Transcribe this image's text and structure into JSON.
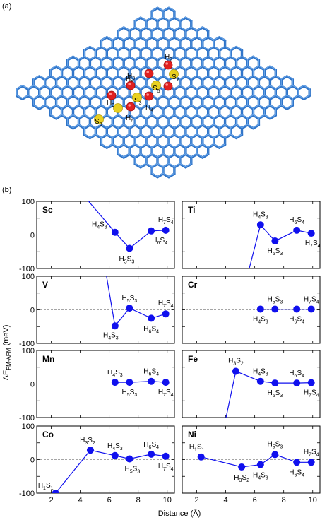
{
  "panel_a": {
    "label": "(a)",
    "atom_labels": [
      {
        "text": "H",
        "sub": "7"
      },
      {
        "text": "S",
        "sub": "7"
      },
      {
        "text": "H",
        "sub": "5"
      },
      {
        "text": "S",
        "sub": "5"
      },
      {
        "text": "H",
        "sub": "0"
      },
      {
        "text": "S",
        "sub": "3"
      },
      {
        "text": "H",
        "sub": "4"
      },
      {
        "text": "S",
        "sub": "0"
      },
      {
        "text": "H",
        "sub": "3"
      },
      {
        "text": "H",
        "sub": "6"
      }
    ]
  },
  "panel_b": {
    "label": "(b)",
    "xlabel": "Distance (Å)",
    "ylabel_main": "ΔE",
    "ylabel_sub": "FM-AFM",
    "ylabel_unit": " (meV)",
    "colors": {
      "series": "#1010ee",
      "zero_line": "#888888",
      "frame": "#000000"
    }
  },
  "chart_data": {
    "type": "line",
    "xlabel": "Distance (Å)",
    "ylabel": "ΔE FM-AFM (meV)",
    "xlim": [
      1,
      10.5
    ],
    "ylim": [
      -100,
      100
    ],
    "xticks": [
      2,
      4,
      6,
      8,
      10
    ],
    "yticks": [
      -100,
      0,
      100
    ],
    "panels": [
      {
        "name": "Sc",
        "points": [
          {
            "x": 6.4,
            "y": 8,
            "lbl": "H4S3"
          },
          {
            "x": 7.4,
            "y": -40,
            "lbl": "H5S3"
          },
          {
            "x": 8.9,
            "y": 12,
            "lbl": "H6S4"
          },
          {
            "x": 9.9,
            "y": 14,
            "lbl": "H7S4"
          }
        ],
        "offscale": {
          "x": 4.5,
          "y": 100
        },
        "labels": [
          {
            "p": 0,
            "t": [
              "H",
              "4",
              "S",
              "3"
            ],
            "dx": -22,
            "dy": -8
          },
          {
            "p": 1,
            "t": [
              "H",
              "5",
              "S",
              "3"
            ],
            "dx": -4,
            "dy": 18
          },
          {
            "p": 2,
            "t": [
              "H",
              "6",
              "S",
              "4"
            ],
            "dx": 12,
            "dy": 16
          },
          {
            "p": 3,
            "t": [
              "H",
              "7",
              "S",
              "4"
            ],
            "dx": 0,
            "dy": -12
          }
        ]
      },
      {
        "name": "Ti",
        "points": [
          {
            "x": 6.4,
            "y": 30,
            "lbl": "H4S3"
          },
          {
            "x": 7.4,
            "y": -18,
            "lbl": "H5S3"
          },
          {
            "x": 8.9,
            "y": 14,
            "lbl": "H6S4"
          },
          {
            "x": 9.9,
            "y": 5,
            "lbl": "H7S4"
          }
        ],
        "offscale": {
          "x": 5.6,
          "y": -100
        },
        "labels": [
          {
            "p": 0,
            "t": [
              "H",
              "4",
              "S",
              "3"
            ],
            "dx": 0,
            "dy": -12
          },
          {
            "p": 1,
            "t": [
              "H",
              "5",
              "S",
              "3"
            ],
            "dx": 0,
            "dy": 17
          },
          {
            "p": 2,
            "t": [
              "H",
              "6",
              "S",
              "4"
            ],
            "dx": 0,
            "dy": -12
          },
          {
            "p": 3,
            "t": [
              "H",
              "7",
              "S",
              "4"
            ],
            "dx": 2,
            "dy": 17
          }
        ]
      },
      {
        "name": "V",
        "points": [
          {
            "x": 6.4,
            "y": -48,
            "lbl": "H4S3"
          },
          {
            "x": 7.4,
            "y": 5,
            "lbl": "H5S3"
          },
          {
            "x": 8.9,
            "y": -25,
            "lbl": "H6S4"
          },
          {
            "x": 9.9,
            "y": -12,
            "lbl": "H7S4"
          }
        ],
        "offscale": {
          "x": 5.8,
          "y": 100
        },
        "labels": [
          {
            "p": 0,
            "t": [
              "H",
              "4",
              "S",
              "3"
            ],
            "dx": -6,
            "dy": 16
          },
          {
            "p": 1,
            "t": [
              "H",
              "5",
              "S",
              "3"
            ],
            "dx": 0,
            "dy": -11
          },
          {
            "p": 2,
            "t": [
              "H",
              "6",
              "S",
              "4"
            ],
            "dx": 0,
            "dy": 18
          },
          {
            "p": 3,
            "t": [
              "H",
              "7",
              "S",
              "4"
            ],
            "dx": 0,
            "dy": -12
          }
        ]
      },
      {
        "name": "Cr",
        "points": [
          {
            "x": 6.4,
            "y": 2,
            "lbl": "H4S3"
          },
          {
            "x": 7.4,
            "y": 2,
            "lbl": "H5S3"
          },
          {
            "x": 8.9,
            "y": 2,
            "lbl": "H6S4"
          },
          {
            "x": 9.9,
            "y": 2,
            "lbl": "H7S4"
          }
        ],
        "offscale": null,
        "labels": [
          {
            "p": 0,
            "t": [
              "H",
              "4",
              "S",
              "3"
            ],
            "dx": 0,
            "dy": 17
          },
          {
            "p": 1,
            "t": [
              "H",
              "5",
              "S",
              "3"
            ],
            "dx": 0,
            "dy": -11
          },
          {
            "p": 2,
            "t": [
              "H",
              "6",
              "S",
              "4"
            ],
            "dx": 0,
            "dy": 17
          },
          {
            "p": 3,
            "t": [
              "H",
              "7",
              "S",
              "4"
            ],
            "dx": 0,
            "dy": -11
          }
        ]
      },
      {
        "name": "Mn",
        "points": [
          {
            "x": 6.4,
            "y": 5,
            "lbl": "H4S3"
          },
          {
            "x": 7.4,
            "y": 5,
            "lbl": "H5S3"
          },
          {
            "x": 8.9,
            "y": 8,
            "lbl": "H6S4"
          },
          {
            "x": 9.9,
            "y": 5,
            "lbl": "H7S4"
          }
        ],
        "offscale": null,
        "labels": [
          {
            "p": 0,
            "t": [
              "H",
              "4",
              "S",
              "3"
            ],
            "dx": 0,
            "dy": -11
          },
          {
            "p": 1,
            "t": [
              "H",
              "5",
              "S",
              "3"
            ],
            "dx": 0,
            "dy": 17
          },
          {
            "p": 2,
            "t": [
              "H",
              "6",
              "S",
              "4"
            ],
            "dx": 0,
            "dy": -11
          },
          {
            "p": 3,
            "t": [
              "H",
              "7",
              "S",
              "4"
            ],
            "dx": 0,
            "dy": 17
          }
        ]
      },
      {
        "name": "Fe",
        "points": [
          {
            "x": 4.7,
            "y": 38,
            "lbl": "H3S2"
          },
          {
            "x": 6.4,
            "y": 8,
            "lbl": "H4S3"
          },
          {
            "x": 7.4,
            "y": 3,
            "lbl": "H5S3"
          },
          {
            "x": 8.9,
            "y": 3,
            "lbl": "H6S4"
          },
          {
            "x": 9.9,
            "y": 4,
            "lbl": "H7S4"
          }
        ],
        "offscale": {
          "x": 4.0,
          "y": -100
        },
        "labels": [
          {
            "p": 0,
            "t": [
              "H",
              "3",
              "S",
              "2"
            ],
            "dx": 0,
            "dy": -12
          },
          {
            "p": 1,
            "t": [
              "H",
              "4",
              "S",
              "3"
            ],
            "dx": 0,
            "dy": -11
          },
          {
            "p": 2,
            "t": [
              "H",
              "5",
              "S",
              "3"
            ],
            "dx": 0,
            "dy": 17
          },
          {
            "p": 3,
            "t": [
              "H",
              "6",
              "S",
              "4"
            ],
            "dx": 0,
            "dy": -11
          },
          {
            "p": 4,
            "t": [
              "H",
              "7",
              "S",
              "4"
            ],
            "dx": 0,
            "dy": 17
          }
        ]
      },
      {
        "name": "Co",
        "points": [
          {
            "x": 2.3,
            "y": -100,
            "lbl": "H1S1"
          },
          {
            "x": 4.7,
            "y": 28,
            "lbl": "H3S2"
          },
          {
            "x": 6.4,
            "y": 12,
            "lbl": "H4S3"
          },
          {
            "x": 7.4,
            "y": 2,
            "lbl": "H5S3"
          },
          {
            "x": 8.9,
            "y": 16,
            "lbl": "H6S4"
          },
          {
            "x": 9.9,
            "y": 10,
            "lbl": "H7S4"
          }
        ],
        "offscale": null,
        "labels": [
          {
            "p": 0,
            "t": [
              "H",
              "1",
              "S",
              "1"
            ],
            "dx": -14,
            "dy": -8
          },
          {
            "p": 1,
            "t": [
              "H",
              "3",
              "S",
              "2"
            ],
            "dx": -4,
            "dy": -11
          },
          {
            "p": 2,
            "t": [
              "H",
              "4",
              "S",
              "3"
            ],
            "dx": 0,
            "dy": -11
          },
          {
            "p": 3,
            "t": [
              "H",
              "5",
              "S",
              "3"
            ],
            "dx": 4,
            "dy": 17
          },
          {
            "p": 4,
            "t": [
              "H",
              "6",
              "S",
              "4"
            ],
            "dx": 0,
            "dy": -11
          },
          {
            "p": 5,
            "t": [
              "H",
              "7",
              "S",
              "4"
            ],
            "dx": 0,
            "dy": 17
          }
        ]
      },
      {
        "name": "Ni",
        "points": [
          {
            "x": 2.3,
            "y": 8,
            "lbl": "H1S1"
          },
          {
            "x": 5.1,
            "y": -22,
            "lbl": "H3S2"
          },
          {
            "x": 6.4,
            "y": -15,
            "lbl": "H4S3"
          },
          {
            "x": 7.4,
            "y": 15,
            "lbl": "H5S3"
          },
          {
            "x": 8.9,
            "y": -8,
            "lbl": "H6S4"
          },
          {
            "x": 9.9,
            "y": -8,
            "lbl": "H7S4"
          }
        ],
        "offscale": null,
        "labels": [
          {
            "p": 0,
            "t": [
              "H",
              "1",
              "S",
              "1"
            ],
            "dx": -6,
            "dy": -11
          },
          {
            "p": 1,
            "t": [
              "H",
              "3",
              "S",
              "2"
            ],
            "dx": 0,
            "dy": 18
          },
          {
            "p": 2,
            "t": [
              "H",
              "4",
              "S",
              "3"
            ],
            "dx": 0,
            "dy": 18
          },
          {
            "p": 3,
            "t": [
              "H",
              "5",
              "S",
              "3"
            ],
            "dx": 0,
            "dy": -12
          },
          {
            "p": 4,
            "t": [
              "H",
              "6",
              "S",
              "4"
            ],
            "dx": 0,
            "dy": 17
          },
          {
            "p": 5,
            "t": [
              "H",
              "7",
              "S",
              "4"
            ],
            "dx": 0,
            "dy": -12
          }
        ]
      }
    ]
  }
}
